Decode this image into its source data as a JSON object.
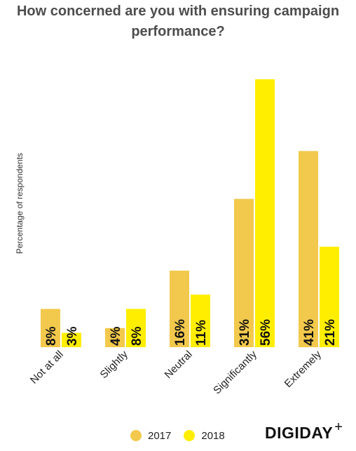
{
  "chart_data": {
    "type": "bar",
    "title": "How concerned are you with ensuring campaign performance?",
    "title_lines": [
      "How concerned are you with ensuring campaign",
      "performance?"
    ],
    "ylabel": "Percentage of respondents",
    "xlabel": "",
    "categories": [
      "Not at all",
      "Slightly",
      "Neutral",
      "Significantly",
      "Extremely"
    ],
    "series": [
      {
        "name": "2017",
        "color": "#f2c94c",
        "values": [
          8,
          4,
          16,
          31,
          41
        ],
        "labels": [
          "8%",
          "4%",
          "16%",
          "31%",
          "41%"
        ]
      },
      {
        "name": "2018",
        "color": "#ffee00",
        "values": [
          3,
          8,
          11,
          56,
          21
        ],
        "labels": [
          "3%",
          "8%",
          "11%",
          "56%",
          "21%"
        ]
      }
    ],
    "ylim": [
      0,
      56
    ],
    "grid": false,
    "legend": "bottom"
  },
  "brand": {
    "logo_text": "DIGIDAY",
    "logo_plus": "+"
  }
}
